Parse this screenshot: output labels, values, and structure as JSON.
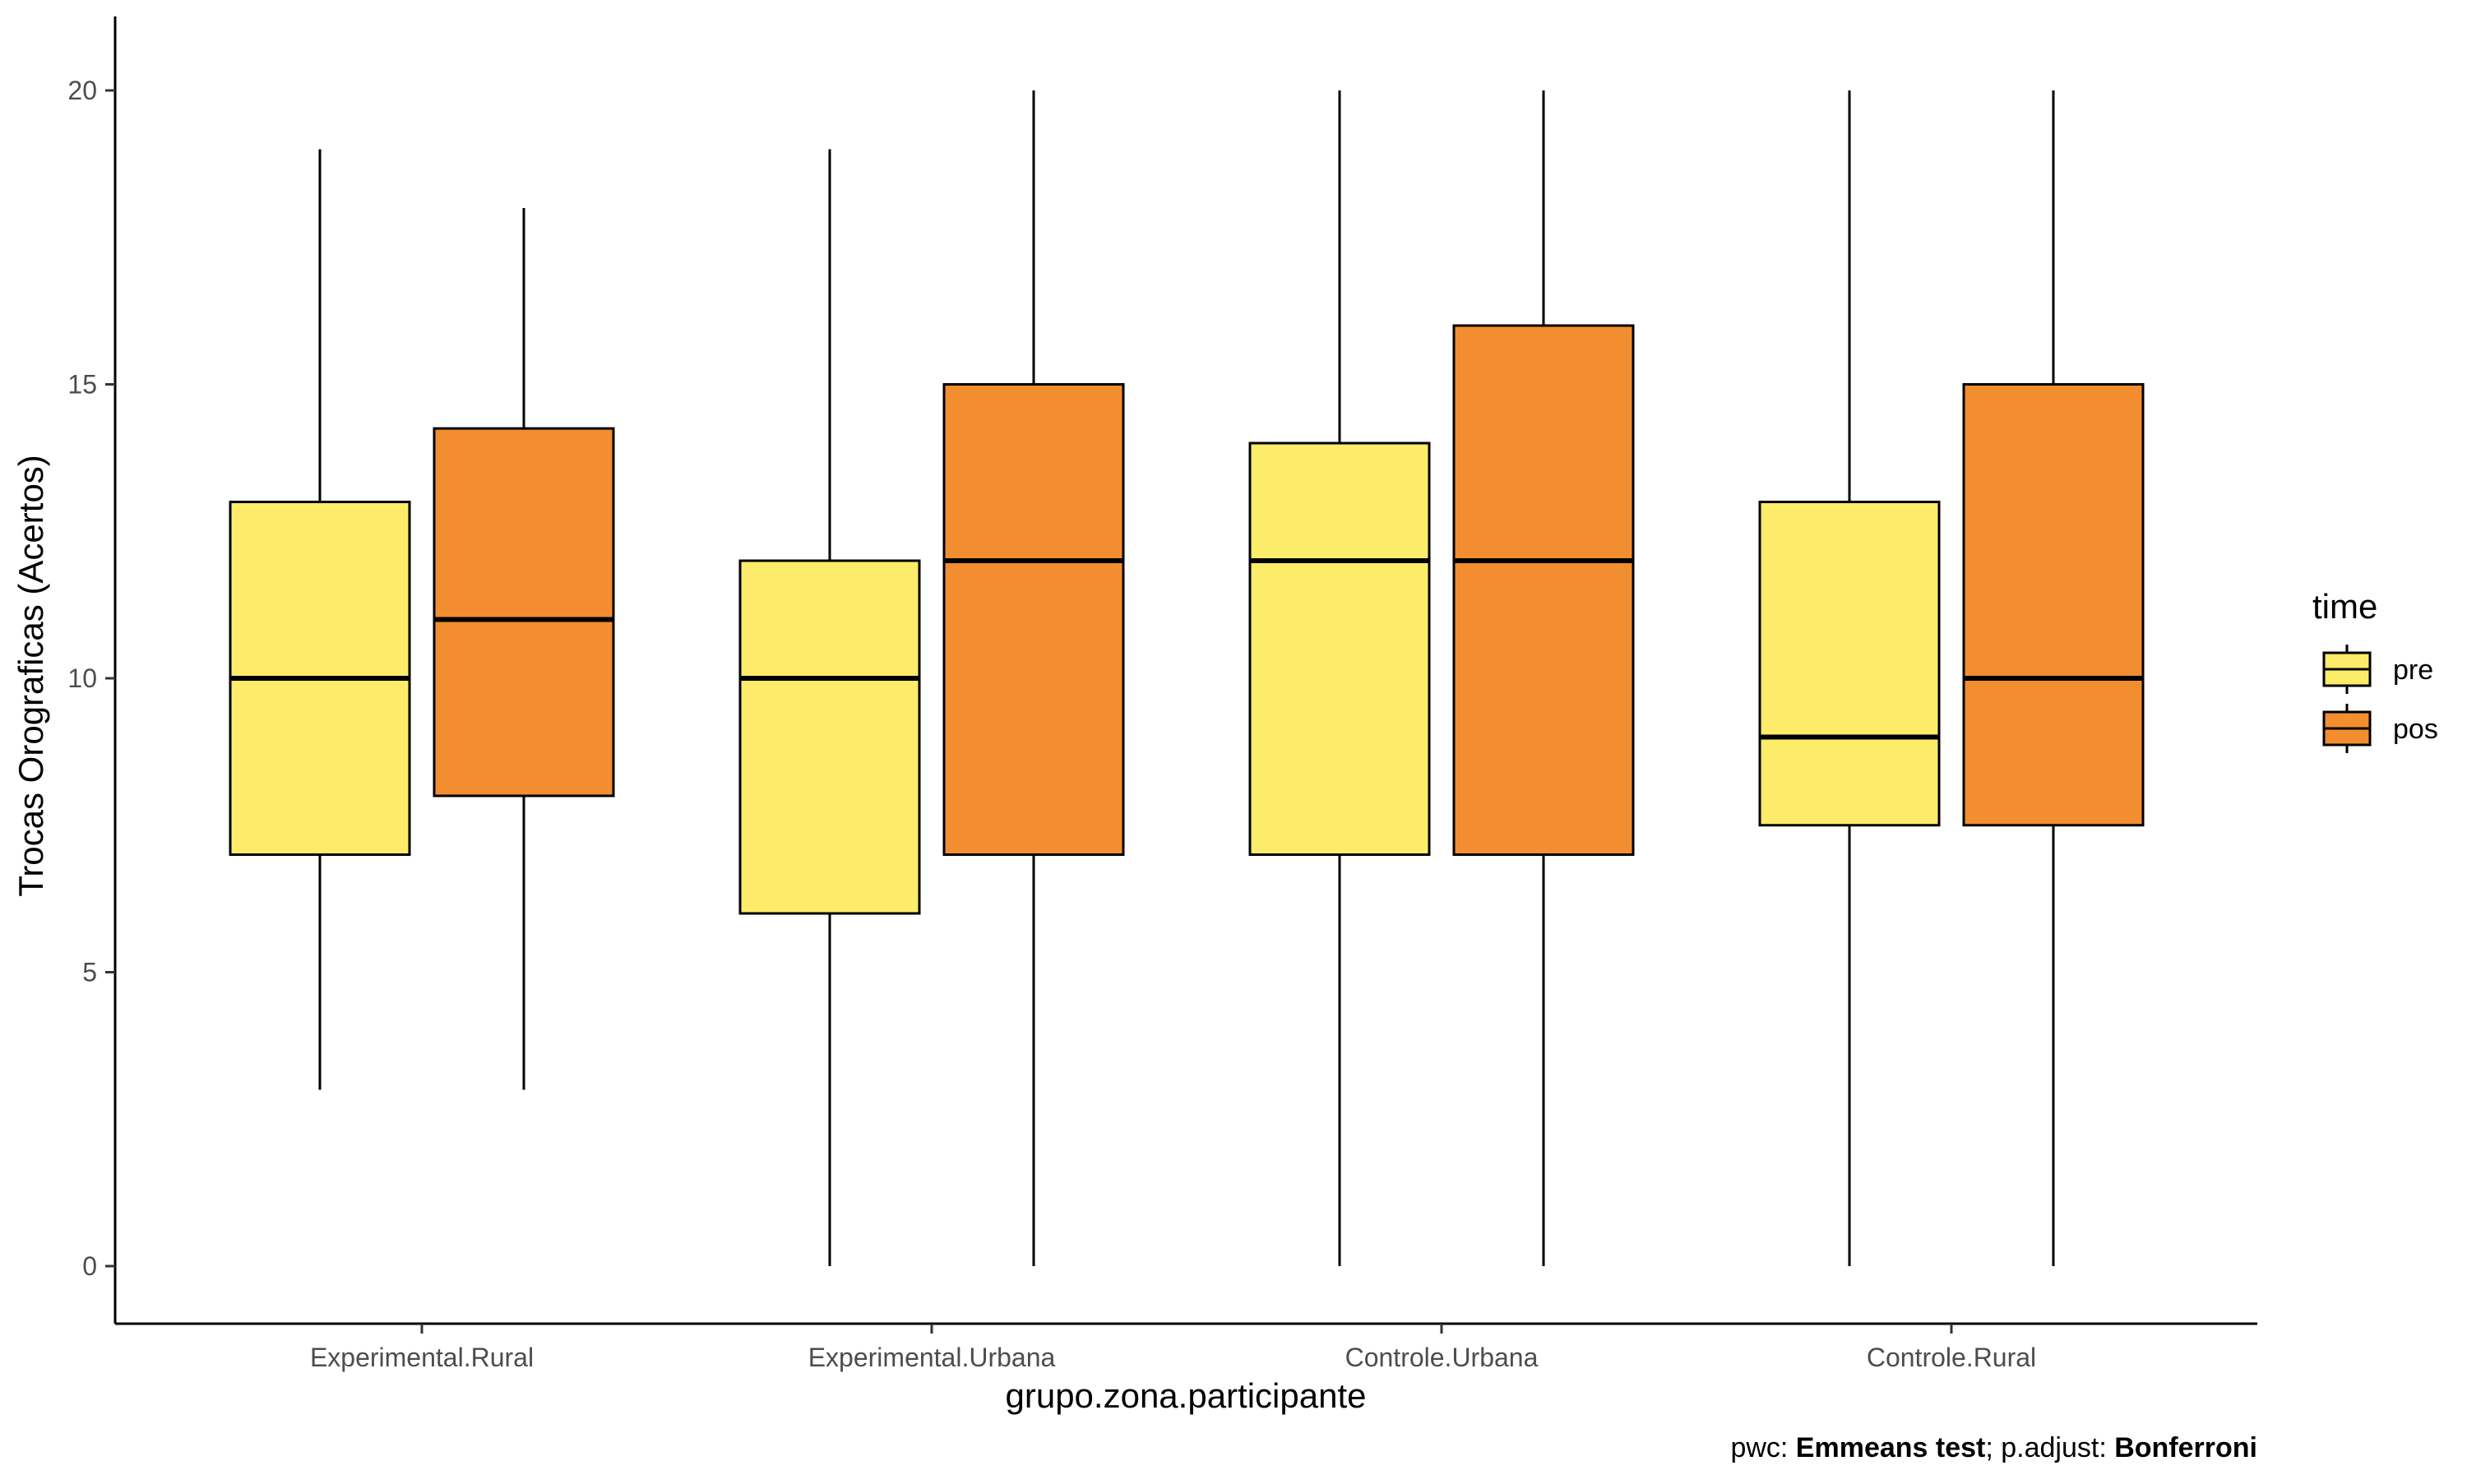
{
  "chart_data": {
    "type": "boxplot",
    "xlabel": "grupo.zona.participante",
    "ylabel": "Trocas Orograficas (Acertos)",
    "ylim": [
      -1,
      21.2
    ],
    "yticks": [
      0,
      5,
      10,
      15,
      20
    ],
    "grid": false,
    "legend_placement": "right",
    "categories": [
      "Experimental.Rural",
      "Experimental.Urbana",
      "Controle.Urbana",
      "Controle.Rural"
    ],
    "legend": {
      "title": "time",
      "entries": [
        {
          "name": "pre",
          "color": "#FDEC6A"
        },
        {
          "name": "pos",
          "color": "#F28E2F"
        }
      ]
    },
    "series": [
      {
        "name": "pre",
        "color": "#FDEC6A",
        "boxes": [
          {
            "min": 3,
            "q1": 7,
            "median": 10,
            "q3": 13,
            "max": 19
          },
          {
            "min": 0,
            "q1": 6,
            "median": 10,
            "q3": 12,
            "max": 19
          },
          {
            "min": 0,
            "q1": 7,
            "median": 12,
            "q3": 14,
            "max": 20
          },
          {
            "min": 0,
            "q1": 7.5,
            "median": 9,
            "q3": 13,
            "max": 20
          }
        ]
      },
      {
        "name": "pos",
        "color": "#F28E2F",
        "boxes": [
          {
            "min": 3,
            "q1": 8,
            "median": 11,
            "q3": 14.25,
            "max": 18
          },
          {
            "min": 0,
            "q1": 7,
            "median": 12,
            "q3": 15,
            "max": 20
          },
          {
            "min": 0,
            "q1": 7,
            "median": 12,
            "q3": 16,
            "max": 20
          },
          {
            "min": 0,
            "q1": 7.5,
            "median": 10,
            "q3": 15,
            "max": 20
          }
        ]
      }
    ],
    "caption": {
      "prefix": "pwc: ",
      "test": "Emmeans test",
      "middle": "; p.adjust: ",
      "adjust": "Bonferroni"
    }
  }
}
